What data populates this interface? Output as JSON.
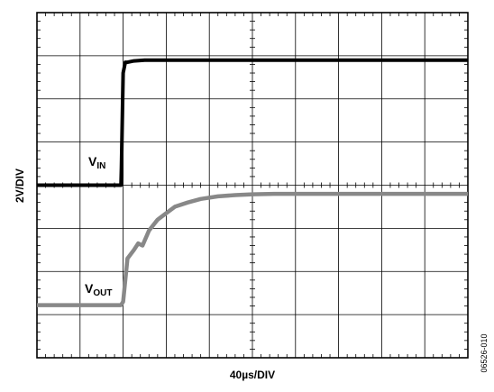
{
  "chart_data": {
    "type": "line",
    "xlabel": "40µs/DIV",
    "ylabel": "2V/DIV",
    "figure_id": "06526-010",
    "grid": true,
    "xlim": [
      0,
      10
    ],
    "ylim": [
      0,
      8
    ],
    "x_units": "divisions",
    "y_units": "divisions",
    "series": [
      {
        "name": "V_IN",
        "label_main": "V",
        "label_sub": "IN",
        "color": "#000000",
        "x": [
          0,
          1.95,
          1.96,
          2.0,
          2.05,
          2.1,
          2.25,
          2.5,
          3,
          4,
          5,
          6,
          7,
          8,
          9,
          10
        ],
        "y": [
          4.0,
          4.0,
          4.4,
          6.6,
          6.85,
          6.85,
          6.88,
          6.9,
          6.9,
          6.9,
          6.9,
          6.9,
          6.9,
          6.9,
          6.9,
          6.9
        ]
      },
      {
        "name": "V_OUT",
        "label_main": "V",
        "label_sub": "OUT",
        "color": "#888888",
        "x": [
          0,
          1.95,
          2.0,
          2.1,
          2.25,
          2.35,
          2.45,
          2.6,
          2.8,
          3.0,
          3.2,
          3.5,
          3.8,
          4.2,
          4.6,
          5,
          5.5,
          6,
          7,
          8,
          9,
          10
        ],
        "y": [
          1.22,
          1.22,
          1.3,
          2.3,
          2.5,
          2.65,
          2.6,
          2.95,
          3.2,
          3.35,
          3.5,
          3.6,
          3.68,
          3.74,
          3.77,
          3.79,
          3.8,
          3.8,
          3.8,
          3.8,
          3.8,
          3.8
        ]
      }
    ]
  }
}
